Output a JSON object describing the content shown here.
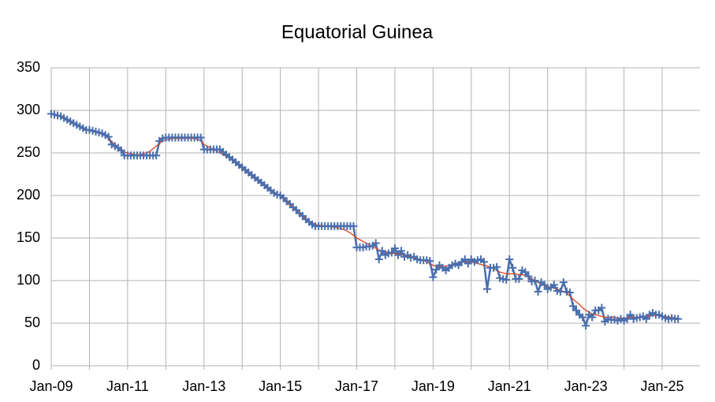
{
  "chart_data": {
    "type": "line",
    "title": "Equatorial Guinea",
    "categories": [
      "Jan-09",
      null,
      null,
      null,
      null,
      null,
      null,
      null,
      null,
      null,
      null,
      null,
      null,
      null,
      null,
      null,
      null,
      null,
      null,
      null,
      null,
      null,
      null,
      null,
      "Jan-11",
      null,
      null,
      null,
      null,
      null,
      null,
      null,
      null,
      null,
      null,
      null,
      null,
      null,
      null,
      null,
      null,
      null,
      null,
      null,
      null,
      null,
      null,
      null,
      "Jan-13",
      null,
      null,
      null,
      null,
      null,
      null,
      null,
      null,
      null,
      null,
      null,
      null,
      null,
      null,
      null,
      null,
      null,
      null,
      null,
      null,
      null,
      null,
      null,
      "Jan-15",
      null,
      null,
      null,
      null,
      null,
      null,
      null,
      null,
      null,
      null,
      null,
      null,
      null,
      null,
      null,
      null,
      null,
      null,
      null,
      null,
      null,
      null,
      null,
      "Jan-17",
      null,
      null,
      null,
      null,
      null,
      null,
      null,
      null,
      null,
      null,
      null,
      null,
      null,
      null,
      null,
      null,
      null,
      null,
      null,
      null,
      null,
      null,
      null,
      "Jan-19",
      null,
      null,
      null,
      null,
      null,
      null,
      null,
      null,
      null,
      null,
      null,
      null,
      null,
      null,
      null,
      null,
      null,
      null,
      null,
      null,
      null,
      null,
      null,
      "Jan-21",
      null,
      null,
      null,
      null,
      null,
      null,
      null,
      null,
      null,
      null,
      null,
      null,
      null,
      null,
      null,
      null,
      null,
      null,
      null,
      null,
      null,
      null,
      null,
      "Jan-23",
      null,
      null,
      null,
      null,
      null,
      null,
      null,
      null,
      null,
      null,
      null,
      null,
      null,
      null,
      null,
      null,
      null,
      null,
      null,
      null,
      null,
      null,
      null,
      "Jan-25",
      null,
      null,
      null,
      null,
      null
    ],
    "series": [
      {
        "color": "#4a6fae",
        "marker": "+",
        "values": [
          296,
          295,
          294,
          293,
          291,
          289,
          287,
          285,
          283,
          281,
          279,
          277,
          277,
          276,
          275,
          274,
          273,
          271,
          269,
          260,
          258,
          256,
          253,
          247,
          247,
          247,
          247,
          247,
          247,
          247,
          247,
          247,
          247,
          247,
          264,
          267,
          268,
          268,
          268,
          268,
          268,
          268,
          268,
          268,
          268,
          268,
          268,
          268,
          254,
          254,
          254,
          254,
          254,
          254,
          251,
          248,
          245,
          242,
          239,
          236,
          233,
          230,
          227,
          224,
          221,
          218,
          215,
          212,
          209,
          206,
          203,
          201,
          200,
          197,
          193,
          190,
          186,
          183,
          179,
          176,
          172,
          169,
          166,
          164,
          164,
          164,
          164,
          164,
          164,
          164,
          164,
          164,
          164,
          164,
          164,
          164,
          139,
          139,
          139,
          140,
          140,
          141,
          144,
          125,
          135,
          130,
          132,
          133,
          138,
          130,
          135,
          128,
          130,
          127,
          128,
          125,
          124,
          124,
          124,
          123,
          104,
          113,
          118,
          115,
          112,
          115,
          118,
          120,
          118,
          122,
          125,
          120,
          125,
          122,
          124,
          125,
          122,
          90,
          115,
          115,
          116,
          103,
          102,
          101,
          125,
          115,
          102,
          102,
          112,
          110,
          105,
          99,
          100,
          87,
          98,
          95,
          90,
          92,
          95,
          88,
          87,
          98,
          87,
          86,
          70,
          65,
          60,
          57,
          47,
          60,
          57,
          65,
          65,
          68,
          52,
          55,
          54,
          54,
          53,
          55,
          53,
          55,
          60,
          55,
          56,
          57,
          58,
          55,
          60,
          62,
          60,
          60,
          58,
          56,
          55,
          56,
          55,
          55
        ]
      },
      {
        "color": "#e0411b",
        "values": [
          296,
          295,
          294,
          293,
          291,
          289,
          287,
          285,
          283,
          281,
          279,
          277,
          276,
          275,
          274,
          273,
          272,
          270,
          267,
          263,
          260,
          257,
          254,
          251,
          250,
          249,
          248,
          248,
          248,
          249,
          250,
          252,
          255,
          258,
          261,
          264,
          265,
          266,
          267,
          267,
          267,
          267,
          267,
          267,
          267,
          267,
          266,
          264,
          260,
          258,
          256,
          254,
          252,
          250,
          248,
          246,
          244,
          241,
          238,
          235,
          232,
          229,
          226,
          223,
          220,
          217,
          214,
          211,
          208,
          205,
          203,
          201,
          199,
          196,
          193,
          190,
          186,
          183,
          179,
          176,
          173,
          170,
          168,
          166,
          165,
          165,
          164,
          164,
          163,
          163,
          162,
          161,
          160,
          158,
          156,
          153,
          150,
          148,
          146,
          144,
          142,
          140,
          138,
          136,
          135,
          134,
          133,
          132,
          132,
          131,
          131,
          130,
          129,
          128,
          127,
          126,
          125,
          124,
          122,
          120,
          118,
          117,
          117,
          117,
          117,
          118,
          119,
          120,
          121,
          122,
          122,
          122,
          122,
          121,
          120,
          119,
          118,
          117,
          116,
          114,
          112,
          110,
          109,
          108,
          108,
          108,
          108,
          107,
          107,
          106,
          104,
          102,
          100,
          98,
          96,
          94,
          93,
          92,
          91,
          90,
          89,
          87,
          85,
          82,
          78,
          75,
          72,
          68,
          65,
          63,
          61,
          60,
          59,
          58,
          57,
          57,
          57,
          57,
          56,
          56,
          56,
          56,
          57,
          57,
          57,
          57,
          58,
          58,
          58,
          59,
          59,
          59,
          58,
          58,
          57,
          57,
          56,
          56
        ]
      }
    ],
    "ylim": [
      0,
      350
    ],
    "yticks": [
      0,
      50,
      100,
      150,
      200,
      250,
      300,
      350
    ],
    "grid": true
  }
}
